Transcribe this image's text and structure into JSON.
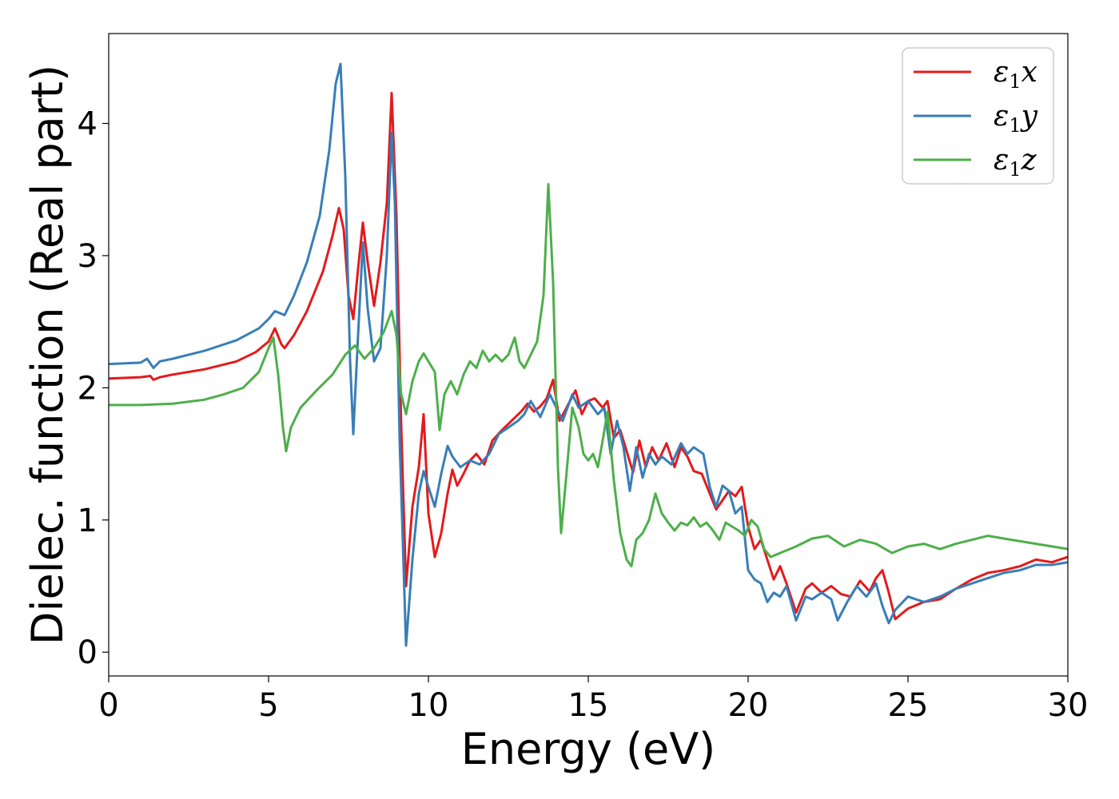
{
  "chart_data": {
    "type": "line",
    "title": "",
    "xlabel": "Energy (eV)",
    "ylabel": "Dielec. function (Real part)",
    "xlim": [
      0,
      30
    ],
    "ylim": [
      -0.18,
      4.68
    ],
    "xticks": [
      0,
      5,
      10,
      15,
      20,
      25,
      30
    ],
    "yticks": [
      0,
      1,
      2,
      3,
      4
    ],
    "grid": false,
    "legend_position": "top-right",
    "series": [
      {
        "name": "ε1x",
        "legend": {
          "base": "ε",
          "sub": "1",
          "tail": "x"
        },
        "color": "#e41a1c",
        "x": [
          0,
          1,
          1.3,
          1.4,
          1.6,
          2,
          3,
          4,
          4.6,
          5,
          5.2,
          5.4,
          5.5,
          5.8,
          6.2,
          6.7,
          7.0,
          7.2,
          7.35,
          7.5,
          7.65,
          7.8,
          7.95,
          8.1,
          8.3,
          8.5,
          8.7,
          8.85,
          9.0,
          9.15,
          9.3,
          9.5,
          9.7,
          9.85,
          10.0,
          10.2,
          10.4,
          10.6,
          10.75,
          10.9,
          11.1,
          11.3,
          11.5,
          11.75,
          12.0,
          12.3,
          12.6,
          12.9,
          13.1,
          13.3,
          13.5,
          13.7,
          13.9,
          14.1,
          14.3,
          14.6,
          14.8,
          15.0,
          15.2,
          15.45,
          15.6,
          15.8,
          16.0,
          16.2,
          16.4,
          16.6,
          16.8,
          17.0,
          17.2,
          17.45,
          17.7,
          17.9,
          18.1,
          18.3,
          18.55,
          18.8,
          19.0,
          19.2,
          19.4,
          19.6,
          19.8,
          20.0,
          20.2,
          20.4,
          20.6,
          20.8,
          21.0,
          21.2,
          21.5,
          21.8,
          22.0,
          22.3,
          22.6,
          22.9,
          23.2,
          23.5,
          23.8,
          24.0,
          24.2,
          24.4,
          24.6,
          25.0,
          25.5,
          26.0,
          26.5,
          27.0,
          27.5,
          28.0,
          28.5,
          29.0,
          29.5,
          30.0
        ],
        "y": [
          2.07,
          2.08,
          2.09,
          2.06,
          2.08,
          2.1,
          2.14,
          2.2,
          2.27,
          2.35,
          2.45,
          2.33,
          2.3,
          2.4,
          2.58,
          2.88,
          3.15,
          3.36,
          3.2,
          2.7,
          2.52,
          2.9,
          3.25,
          2.95,
          2.62,
          2.95,
          3.4,
          4.23,
          3.3,
          1.7,
          0.5,
          1.1,
          1.4,
          1.8,
          1.05,
          0.72,
          0.9,
          1.2,
          1.38,
          1.26,
          1.35,
          1.45,
          1.5,
          1.42,
          1.6,
          1.68,
          1.75,
          1.82,
          1.88,
          1.82,
          1.86,
          1.92,
          2.06,
          1.75,
          1.84,
          1.98,
          1.8,
          1.9,
          1.92,
          1.85,
          1.9,
          1.62,
          1.68,
          1.52,
          1.36,
          1.6,
          1.4,
          1.55,
          1.45,
          1.58,
          1.4,
          1.55,
          1.48,
          1.37,
          1.35,
          1.2,
          1.08,
          1.15,
          1.22,
          1.18,
          1.25,
          0.95,
          0.78,
          0.85,
          0.7,
          0.55,
          0.65,
          0.52,
          0.3,
          0.48,
          0.52,
          0.45,
          0.5,
          0.44,
          0.42,
          0.54,
          0.46,
          0.56,
          0.62,
          0.45,
          0.25,
          0.33,
          0.38,
          0.4,
          0.48,
          0.55,
          0.6,
          0.62,
          0.65,
          0.7,
          0.68,
          0.72
        ]
      },
      {
        "name": "ε1y",
        "legend": {
          "base": "ε",
          "sub": "1",
          "tail": "y"
        },
        "color": "#377eb8",
        "x": [
          0,
          1,
          1.2,
          1.4,
          1.6,
          2,
          3,
          4,
          4.7,
          5.0,
          5.2,
          5.5,
          5.8,
          6.2,
          6.6,
          6.9,
          7.1,
          7.25,
          7.4,
          7.55,
          7.65,
          7.8,
          7.95,
          8.1,
          8.3,
          8.5,
          8.7,
          8.85,
          8.95,
          9.1,
          9.3,
          9.5,
          9.7,
          9.85,
          10.0,
          10.2,
          10.4,
          10.6,
          10.75,
          11.0,
          11.3,
          11.6,
          11.9,
          12.2,
          12.5,
          12.8,
          13.0,
          13.2,
          13.5,
          13.8,
          14.0,
          14.2,
          14.5,
          14.7,
          15.0,
          15.3,
          15.5,
          15.7,
          15.9,
          16.1,
          16.3,
          16.5,
          16.7,
          16.9,
          17.1,
          17.3,
          17.6,
          17.9,
          18.1,
          18.3,
          18.6,
          18.8,
          19.0,
          19.2,
          19.4,
          19.6,
          19.8,
          20.0,
          20.2,
          20.4,
          20.6,
          20.8,
          21.0,
          21.2,
          21.5,
          21.8,
          22.0,
          22.3,
          22.6,
          22.8,
          23.1,
          23.4,
          23.7,
          24.0,
          24.2,
          24.4,
          24.6,
          25.0,
          25.5,
          26.0,
          26.5,
          27.0,
          27.5,
          28.0,
          28.5,
          29.0,
          29.5,
          30.0
        ],
        "y": [
          2.18,
          2.19,
          2.22,
          2.15,
          2.2,
          2.22,
          2.28,
          2.36,
          2.45,
          2.52,
          2.58,
          2.55,
          2.7,
          2.95,
          3.3,
          3.8,
          4.3,
          4.45,
          3.6,
          2.2,
          1.65,
          2.4,
          3.1,
          2.6,
          2.2,
          2.3,
          3.0,
          3.93,
          3.4,
          1.6,
          0.05,
          0.7,
          1.2,
          1.37,
          1.25,
          1.1,
          1.35,
          1.56,
          1.48,
          1.4,
          1.45,
          1.42,
          1.5,
          1.65,
          1.7,
          1.75,
          1.8,
          1.9,
          1.78,
          1.95,
          1.85,
          1.75,
          1.95,
          1.85,
          1.9,
          1.8,
          1.85,
          1.5,
          1.75,
          1.55,
          1.22,
          1.55,
          1.32,
          1.5,
          1.42,
          1.48,
          1.42,
          1.58,
          1.5,
          1.55,
          1.5,
          1.25,
          1.1,
          1.26,
          1.22,
          1.05,
          1.1,
          0.62,
          0.55,
          0.52,
          0.38,
          0.45,
          0.42,
          0.5,
          0.24,
          0.42,
          0.4,
          0.45,
          0.4,
          0.24,
          0.38,
          0.5,
          0.42,
          0.52,
          0.35,
          0.22,
          0.32,
          0.42,
          0.38,
          0.42,
          0.48,
          0.52,
          0.56,
          0.6,
          0.62,
          0.66,
          0.66,
          0.68
        ]
      },
      {
        "name": "ε1z",
        "legend": {
          "base": "ε",
          "sub": "1",
          "tail": "z"
        },
        "color": "#4daf4a",
        "x": [
          0,
          1,
          2,
          3,
          3.6,
          4.2,
          4.7,
          5.0,
          5.15,
          5.3,
          5.45,
          5.55,
          5.7,
          6.0,
          6.5,
          7.0,
          7.4,
          7.7,
          8.0,
          8.3,
          8.6,
          8.85,
          9.0,
          9.15,
          9.3,
          9.5,
          9.7,
          9.85,
          10.0,
          10.2,
          10.35,
          10.5,
          10.7,
          10.9,
          11.1,
          11.3,
          11.5,
          11.7,
          11.9,
          12.1,
          12.3,
          12.5,
          12.7,
          12.85,
          13.0,
          13.2,
          13.4,
          13.6,
          13.75,
          13.9,
          14.05,
          14.15,
          14.3,
          14.5,
          14.7,
          14.85,
          15.0,
          15.15,
          15.3,
          15.45,
          15.6,
          15.8,
          16.0,
          16.2,
          16.35,
          16.5,
          16.7,
          16.9,
          17.1,
          17.3,
          17.5,
          17.7,
          17.9,
          18.1,
          18.3,
          18.5,
          18.7,
          18.9,
          19.1,
          19.3,
          19.5,
          19.7,
          19.9,
          20.1,
          20.3,
          20.5,
          20.7,
          21.0,
          21.5,
          22.0,
          22.5,
          23.0,
          23.5,
          24.0,
          24.5,
          25.0,
          25.5,
          26.0,
          26.5,
          27.0,
          27.5,
          28.0,
          28.5,
          29.0,
          29.5,
          30.0
        ],
        "y": [
          1.87,
          1.87,
          1.88,
          1.91,
          1.95,
          2.0,
          2.12,
          2.3,
          2.38,
          2.1,
          1.7,
          1.52,
          1.7,
          1.85,
          1.98,
          2.1,
          2.25,
          2.32,
          2.22,
          2.3,
          2.42,
          2.58,
          2.4,
          1.95,
          1.8,
          2.05,
          2.2,
          2.26,
          2.2,
          2.12,
          1.68,
          1.95,
          2.05,
          1.95,
          2.1,
          2.2,
          2.15,
          2.28,
          2.2,
          2.25,
          2.2,
          2.25,
          2.38,
          2.2,
          2.15,
          2.25,
          2.35,
          2.7,
          3.54,
          2.8,
          1.4,
          0.9,
          1.3,
          1.85,
          1.7,
          1.5,
          1.45,
          1.5,
          1.4,
          1.6,
          1.82,
          1.3,
          0.9,
          0.7,
          0.65,
          0.85,
          0.9,
          1.0,
          1.2,
          1.05,
          0.98,
          0.92,
          0.98,
          0.96,
          1.02,
          0.95,
          0.98,
          0.92,
          0.85,
          0.98,
          0.95,
          0.92,
          0.88,
          1.0,
          0.95,
          0.78,
          0.72,
          0.75,
          0.8,
          0.86,
          0.88,
          0.8,
          0.85,
          0.82,
          0.75,
          0.8,
          0.82,
          0.78,
          0.82,
          0.85,
          0.88,
          0.86,
          0.84,
          0.82,
          0.8,
          0.78
        ]
      }
    ]
  }
}
